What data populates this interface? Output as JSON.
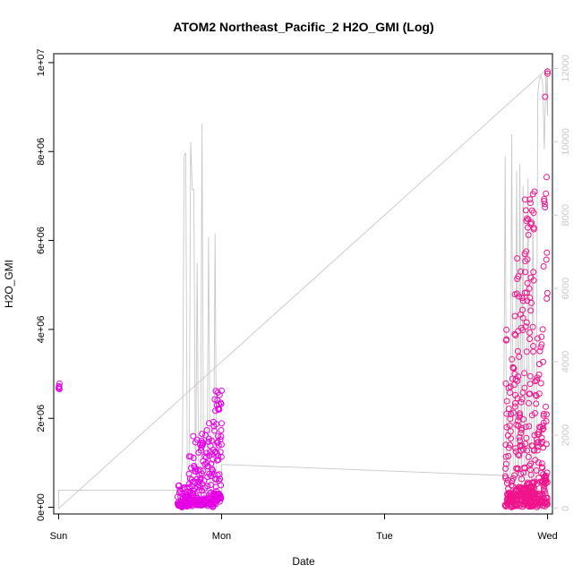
{
  "chart_data": {
    "type": "scatter",
    "title": "ATOM2 Northeast_Pacific_2 H2O_GMI (Log)",
    "xlabel": "Date",
    "ylabel": "H2O_GMI",
    "x_tick_labels": [
      "Sun",
      "Mon",
      "Tue",
      "Wed"
    ],
    "x_tick_days": [
      0,
      1,
      2,
      3
    ],
    "xlim_days": [
      -0.03,
      3.03
    ],
    "y_ticks": [
      0,
      2000000,
      4000000,
      6000000,
      8000000,
      10000000
    ],
    "y_tick_labels": [
      "0e+00",
      "2e+06",
      "4e+06",
      "6e+06",
      "8e+06",
      "1e+07"
    ],
    "ylim": [
      -150000,
      10200000
    ],
    "y2_ticks": [
      0,
      2000,
      4000,
      6000,
      8000,
      10000,
      12000
    ],
    "y2_tick_labels": [
      "0",
      "2000",
      "4000",
      "6000",
      "8000",
      "10000",
      "12000"
    ],
    "y2lim": [
      -150,
      12400
    ],
    "colors": {
      "series_early": "#e600e6",
      "series_late": "#f0148c",
      "altitude_line": "#c8c8c8"
    },
    "series": [
      {
        "kind": "points",
        "color_key": "series_early",
        "segments": [
          {
            "x_start": 0.0,
            "x_end": 0.005,
            "count": 4,
            "y_low": 2650000,
            "y_high": 2780000,
            "y_base": 2650000
          },
          {
            "x_start": 0.73,
            "x_end": 0.8,
            "count": 70,
            "y_low": 0,
            "y_high": 520000,
            "y_base": 20000
          },
          {
            "x_start": 0.8,
            "x_end": 0.88,
            "count": 90,
            "y_low": 0,
            "y_high": 1650000,
            "y_base": 40000
          },
          {
            "x_start": 0.88,
            "x_end": 0.95,
            "count": 90,
            "y_low": 0,
            "y_high": 1920000,
            "y_base": 60000
          },
          {
            "x_start": 0.95,
            "x_end": 1.0,
            "count": 80,
            "y_low": 40000,
            "y_high": 2620000,
            "y_base": 120000
          }
        ]
      },
      {
        "kind": "points",
        "color_key": "series_late",
        "segments": [
          {
            "x_start": 2.74,
            "x_end": 2.8,
            "count": 90,
            "y_low": 0,
            "y_high": 4300000,
            "y_base": 10000
          },
          {
            "x_start": 2.8,
            "x_end": 2.86,
            "count": 110,
            "y_low": 0,
            "y_high": 5700000,
            "y_base": 10000
          },
          {
            "x_start": 2.86,
            "x_end": 2.92,
            "count": 130,
            "y_low": 0,
            "y_high": 7100000,
            "y_base": 10000
          },
          {
            "x_start": 2.92,
            "x_end": 2.97,
            "count": 70,
            "y_low": 0,
            "y_high": 4000000,
            "y_base": 20000
          },
          {
            "x_start": 2.97,
            "x_end": 3.0,
            "count": 60,
            "y_low": 0,
            "y_high": 9800000,
            "y_base": 20000
          }
        ]
      },
      {
        "kind": "line",
        "axis": "right",
        "color_key": "altitude_line",
        "x": [
          0.0,
          0.0,
          0.74,
          0.75,
          0.76,
          0.77,
          0.78,
          0.79,
          0.8,
          0.81,
          0.82,
          0.83,
          0.84,
          0.85,
          0.86,
          0.87,
          0.88,
          0.89,
          0.9,
          0.91,
          0.92,
          0.93,
          0.94,
          0.95,
          0.96,
          0.97,
          0.98,
          0.99,
          1.0,
          1.0,
          2.73,
          2.74,
          2.75,
          2.76,
          2.77,
          2.78,
          2.79,
          2.8,
          2.81,
          2.82,
          2.83,
          2.84,
          2.85,
          2.86,
          2.87,
          2.88,
          2.89,
          2.9,
          2.91,
          2.92,
          2.93,
          2.94,
          2.95,
          2.96,
          2.97,
          2.98,
          2.99,
          3.0,
          3.0,
          0.0
        ],
        "y": [
          0,
          500,
          500,
          600,
          1500,
          9600,
          9700,
          400,
          300,
          10000,
          8700,
          8700,
          300,
          6700,
          200,
          100,
          10500,
          300,
          500,
          300,
          7400,
          600,
          300,
          200,
          7500,
          200,
          300,
          400,
          300,
          1200,
          900,
          9600,
          300,
          200,
          800,
          10200,
          400,
          300,
          9200,
          300,
          9400,
          200,
          8800,
          300,
          500,
          9000,
          200,
          300,
          8200,
          600,
          400,
          11300,
          11700,
          11800,
          11600,
          9800,
          11900,
          10700,
          12000,
          0
        ]
      }
    ]
  }
}
